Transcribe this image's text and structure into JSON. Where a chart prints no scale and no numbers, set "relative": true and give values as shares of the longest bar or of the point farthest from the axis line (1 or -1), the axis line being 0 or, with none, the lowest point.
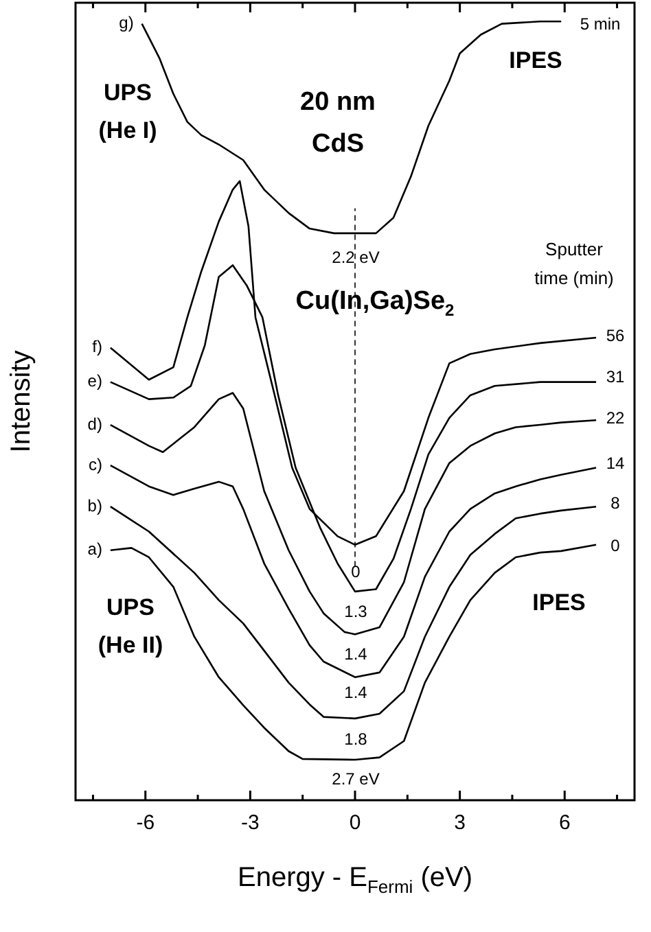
{
  "chart_data": {
    "type": "line",
    "relative": true,
    "xlabel": "Energy - E$_{Fermi}$ (eV)",
    "ylabel": "Intensity",
    "xlim": [
      -8,
      8
    ],
    "xticks": [
      {
        "value": -7.5,
        "label": null
      },
      -6,
      {
        "value": -4.5,
        "label": null
      },
      -3,
      {
        "value": -1.5,
        "label": null
      },
      0,
      {
        "value": 1.5,
        "label": null
      },
      3,
      {
        "value": 4.5,
        "label": null
      },
      6,
      {
        "value": 7.5,
        "label": null
      }
    ],
    "grid": false,
    "marker": "none",
    "line_style": "solid",
    "series": [
      {
        "name": "a)",
        "color": "#000000",
        "x": [
          -7.0,
          -6.4,
          -5.9,
          -5.2,
          -4.6,
          -3.9,
          -3.2,
          -2.6,
          -1.9,
          -1.5,
          0.0,
          0.7,
          1.4,
          2.0,
          2.7,
          3.3,
          4.0,
          4.6,
          5.3,
          5.9,
          6.9
        ],
        "values": [
          0.321,
          0.324,
          0.312,
          0.274,
          0.21,
          0.158,
          0.122,
          0.093,
          0.063,
          0.053,
          0.052,
          0.055,
          0.076,
          0.151,
          0.21,
          0.257,
          0.292,
          0.312,
          0.318,
          0.32,
          0.328
        ]
      },
      {
        "name": "b)",
        "color": "#000000",
        "x": [
          -7.0,
          -5.9,
          -4.6,
          -3.9,
          -3.2,
          -2.6,
          -1.9,
          -1.3,
          -0.9,
          0.0,
          0.7,
          1.4,
          2.0,
          2.7,
          3.3,
          4.0,
          4.6,
          5.3,
          5.9,
          6.9
        ],
        "values": [
          0.377,
          0.345,
          0.292,
          0.257,
          0.227,
          0.192,
          0.151,
          0.123,
          0.107,
          0.105,
          0.111,
          0.14,
          0.21,
          0.274,
          0.315,
          0.342,
          0.362,
          0.368,
          0.372,
          0.377
        ]
      },
      {
        "name": "c)",
        "color": "#000000",
        "x": [
          -7.0,
          -5.9,
          -5.2,
          -4.6,
          -3.9,
          -3.5,
          -3.2,
          -2.6,
          -1.9,
          -1.3,
          -0.9,
          0.0,
          0.7,
          1.4,
          2.0,
          2.7,
          3.3,
          4.0,
          4.6,
          5.3,
          5.9,
          6.9
        ],
        "values": [
          0.43,
          0.403,
          0.392,
          0.4,
          0.409,
          0.403,
          0.374,
          0.304,
          0.246,
          0.199,
          0.178,
          0.158,
          0.164,
          0.21,
          0.287,
          0.345,
          0.374,
          0.394,
          0.403,
          0.412,
          0.418,
          0.427
        ]
      },
      {
        "name": "d)",
        "color": "#000000",
        "x": [
          -7.0,
          -5.9,
          -5.5,
          -4.6,
          -3.9,
          -3.5,
          -3.2,
          -2.6,
          -1.9,
          -1.3,
          -0.9,
          -0.3,
          0.0,
          0.7,
          1.4,
          2.0,
          2.7,
          3.3,
          4.0,
          4.6,
          5.3,
          5.9,
          6.9
        ],
        "values": [
          0.482,
          0.455,
          0.447,
          0.479,
          0.515,
          0.523,
          0.503,
          0.397,
          0.321,
          0.268,
          0.24,
          0.216,
          0.213,
          0.222,
          0.28,
          0.374,
          0.433,
          0.455,
          0.471,
          0.479,
          0.482,
          0.485,
          0.488
        ]
      },
      {
        "name": "e)",
        "color": "#000000",
        "x": [
          -7.0,
          -5.9,
          -5.2,
          -4.7,
          -4.3,
          -3.9,
          -3.5,
          -3.1,
          -2.65,
          -2.2,
          -1.7,
          -1.0,
          -0.5,
          0.0,
          0.6,
          1.1,
          1.6,
          2.1,
          2.7,
          3.3,
          4.0,
          5.3,
          6.9
        ],
        "values": [
          0.537,
          0.515,
          0.517,
          0.532,
          0.584,
          0.672,
          0.687,
          0.661,
          0.62,
          0.52,
          0.427,
          0.35,
          0.304,
          0.268,
          0.271,
          0.31,
          0.374,
          0.444,
          0.491,
          0.52,
          0.532,
          0.537,
          0.537
        ]
      },
      {
        "name": "f)",
        "color": "#000000",
        "x": [
          -7.0,
          -5.9,
          -5.2,
          -4.8,
          -4.4,
          -3.9,
          -3.5,
          -3.3,
          -3.05,
          -2.85,
          -2.3,
          -1.8,
          -1.3,
          -0.5,
          0.0,
          0.6,
          1.4,
          2.1,
          2.7,
          3.3,
          4.0,
          5.3,
          6.9
        ],
        "values": [
          0.581,
          0.54,
          0.556,
          0.62,
          0.679,
          0.743,
          0.784,
          0.795,
          0.737,
          0.62,
          0.52,
          0.427,
          0.374,
          0.339,
          0.328,
          0.339,
          0.397,
          0.491,
          0.561,
          0.573,
          0.579,
          0.587,
          0.594
        ]
      },
      {
        "name": "g)",
        "color": "#000000",
        "x": [
          -6.1,
          -5.6,
          -5.2,
          -4.8,
          -4.4,
          -3.9,
          -3.2,
          -2.6,
          -1.9,
          -1.3,
          -0.6,
          0.6,
          1.1,
          1.6,
          2.1,
          2.7,
          3.0,
          3.6,
          4.2,
          5.3,
          5.9
        ],
        "values": [
          0.997,
          0.953,
          0.907,
          0.871,
          0.854,
          0.842,
          0.822,
          0.784,
          0.754,
          0.734,
          0.728,
          0.728,
          0.748,
          0.801,
          0.866,
          0.924,
          0.959,
          0.983,
          0.997,
          1,
          1
        ]
      }
    ],
    "ref_lines": [
      {
        "axis": "x",
        "value": 0,
        "line_style": "dashed"
      }
    ],
    "annotations": [
      "UPS\n(He I)",
      "20 nm\nCdS",
      "IPES",
      "Sputter\ntime (min)",
      "Cu(In,Ga)Se$_{2}$",
      "IPES",
      "UPS\n(He II)",
      "2.2 eV",
      "0",
      "1.3",
      "1.4",
      "1.4",
      "1.8",
      "2.7 eV",
      "5 min",
      "56",
      "31",
      "22",
      "14",
      "8",
      "0"
    ]
  }
}
